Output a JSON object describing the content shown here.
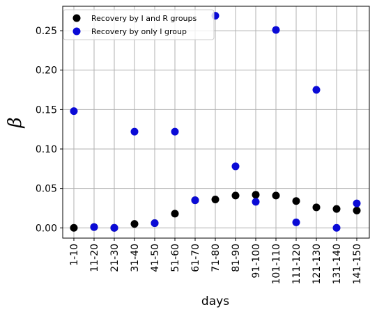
{
  "chart_data": {
    "type": "scatter",
    "categories": [
      "1-10",
      "11-20",
      "21-30",
      "31-40",
      "41-50",
      "51-60",
      "61-70",
      "71-80",
      "81-90",
      "91-100",
      "101-110",
      "111-120",
      "121-130",
      "131-140",
      "141-150"
    ],
    "series": [
      {
        "name": "Recovery by I and R groups",
        "color": "#000000",
        "values": [
          0.0,
          0.001,
          0.0,
          0.005,
          0.006,
          0.018,
          0.035,
          0.036,
          0.041,
          0.042,
          0.041,
          0.034,
          0.026,
          0.024,
          0.022
        ]
      },
      {
        "name": "Recovery by only I group",
        "color": "#0a0ad6",
        "values": [
          0.148,
          0.001,
          0.0,
          0.122,
          0.006,
          0.122,
          0.035,
          0.269,
          0.078,
          0.033,
          0.251,
          0.007,
          0.175,
          0.0,
          0.031
        ]
      }
    ],
    "xlabel": "days",
    "ylabel": "β",
    "yticks": [
      "0.00",
      "0.05",
      "0.10",
      "0.15",
      "0.20",
      "0.25"
    ],
    "ytick_values": [
      0,
      0.05,
      0.1,
      0.15,
      0.2,
      0.25
    ],
    "ylim": [
      -0.013,
      0.281
    ],
    "grid": true,
    "legend": "top-left"
  }
}
